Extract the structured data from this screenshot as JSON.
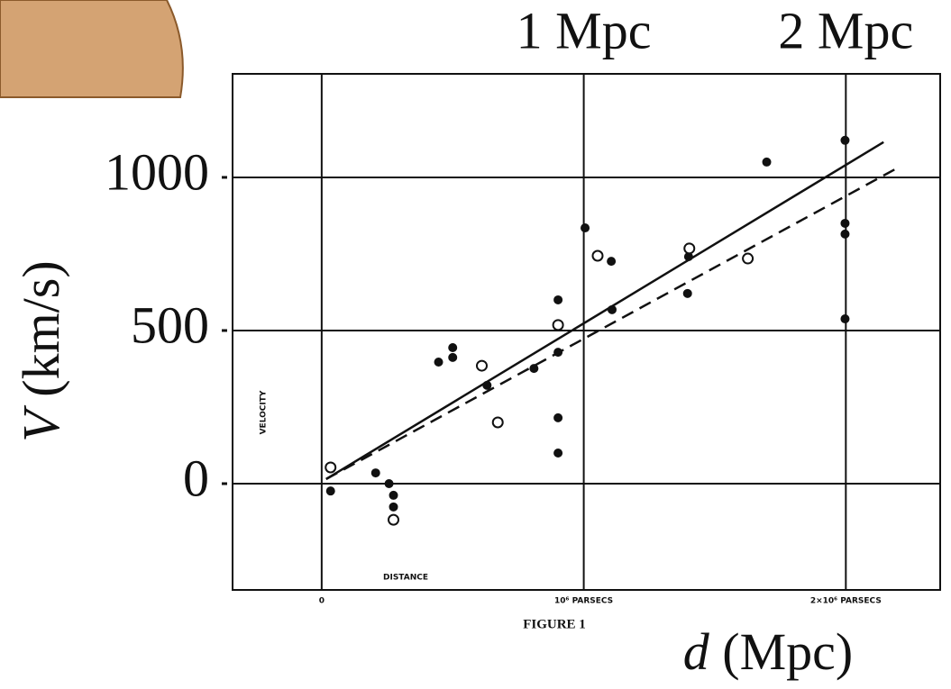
{
  "chart_data": {
    "type": "scatter",
    "xlim": [
      -0.34,
      2.36
    ],
    "ylim": [
      -347,
      1338
    ],
    "xticks": [
      0,
      {
        "value": 1,
        "label": "10⁶ PARSECS"
      },
      {
        "value": 2,
        "label": "2×10⁶ PARSECS"
      }
    ],
    "x2ticks": [
      {
        "value": 1,
        "label": "1 Mpc"
      },
      {
        "value": 2,
        "label": "2 Mpc"
      }
    ],
    "yticks": [
      0,
      500,
      1000
    ],
    "grid": true,
    "ylabel_symbol": "V",
    "ylabel_unit": " (km/s)",
    "xlabel_symbol": "d",
    "xlabel_unit": " (Mpc)",
    "inner_ylabel": "VELOCITY",
    "inner_xlabel": "DISTANCE",
    "caption": "FIGURE 1",
    "color": "#111111",
    "series": [
      {
        "marker": "filled",
        "x": [
          0.034,
          0.206,
          0.257,
          0.274,
          0.274,
          0.446,
          0.5,
          0.5,
          0.631,
          0.81,
          0.902,
          0.902,
          0.902,
          0.902,
          1.005,
          1.105,
          1.108,
          1.396,
          1.4,
          1.698,
          1.997,
          1.997,
          1.997,
          1.997
        ],
        "values": [
          -24,
          35,
          0,
          -38,
          -76,
          397,
          444,
          412,
          321,
          376,
          600,
          429,
          215,
          100,
          835,
          726,
          568,
          621,
          741,
          1050,
          1121,
          850,
          815,
          538
        ]
      },
      {
        "marker": "open",
        "x": [
          0.034,
          0.274,
          0.611,
          0.672,
          0.902,
          1.053,
          1.403,
          1.626
        ],
        "values": [
          53,
          -118,
          385,
          200,
          518,
          744,
          768,
          735
        ]
      },
      {
        "marker": "line",
        "dash": false,
        "x": [
          0.017,
          2.144
        ],
        "values": [
          15,
          1115
        ]
      },
      {
        "marker": "line",
        "dash": true,
        "x": [
          0.017,
          2.206
        ],
        "values": [
          15,
          1035
        ]
      }
    ]
  }
}
